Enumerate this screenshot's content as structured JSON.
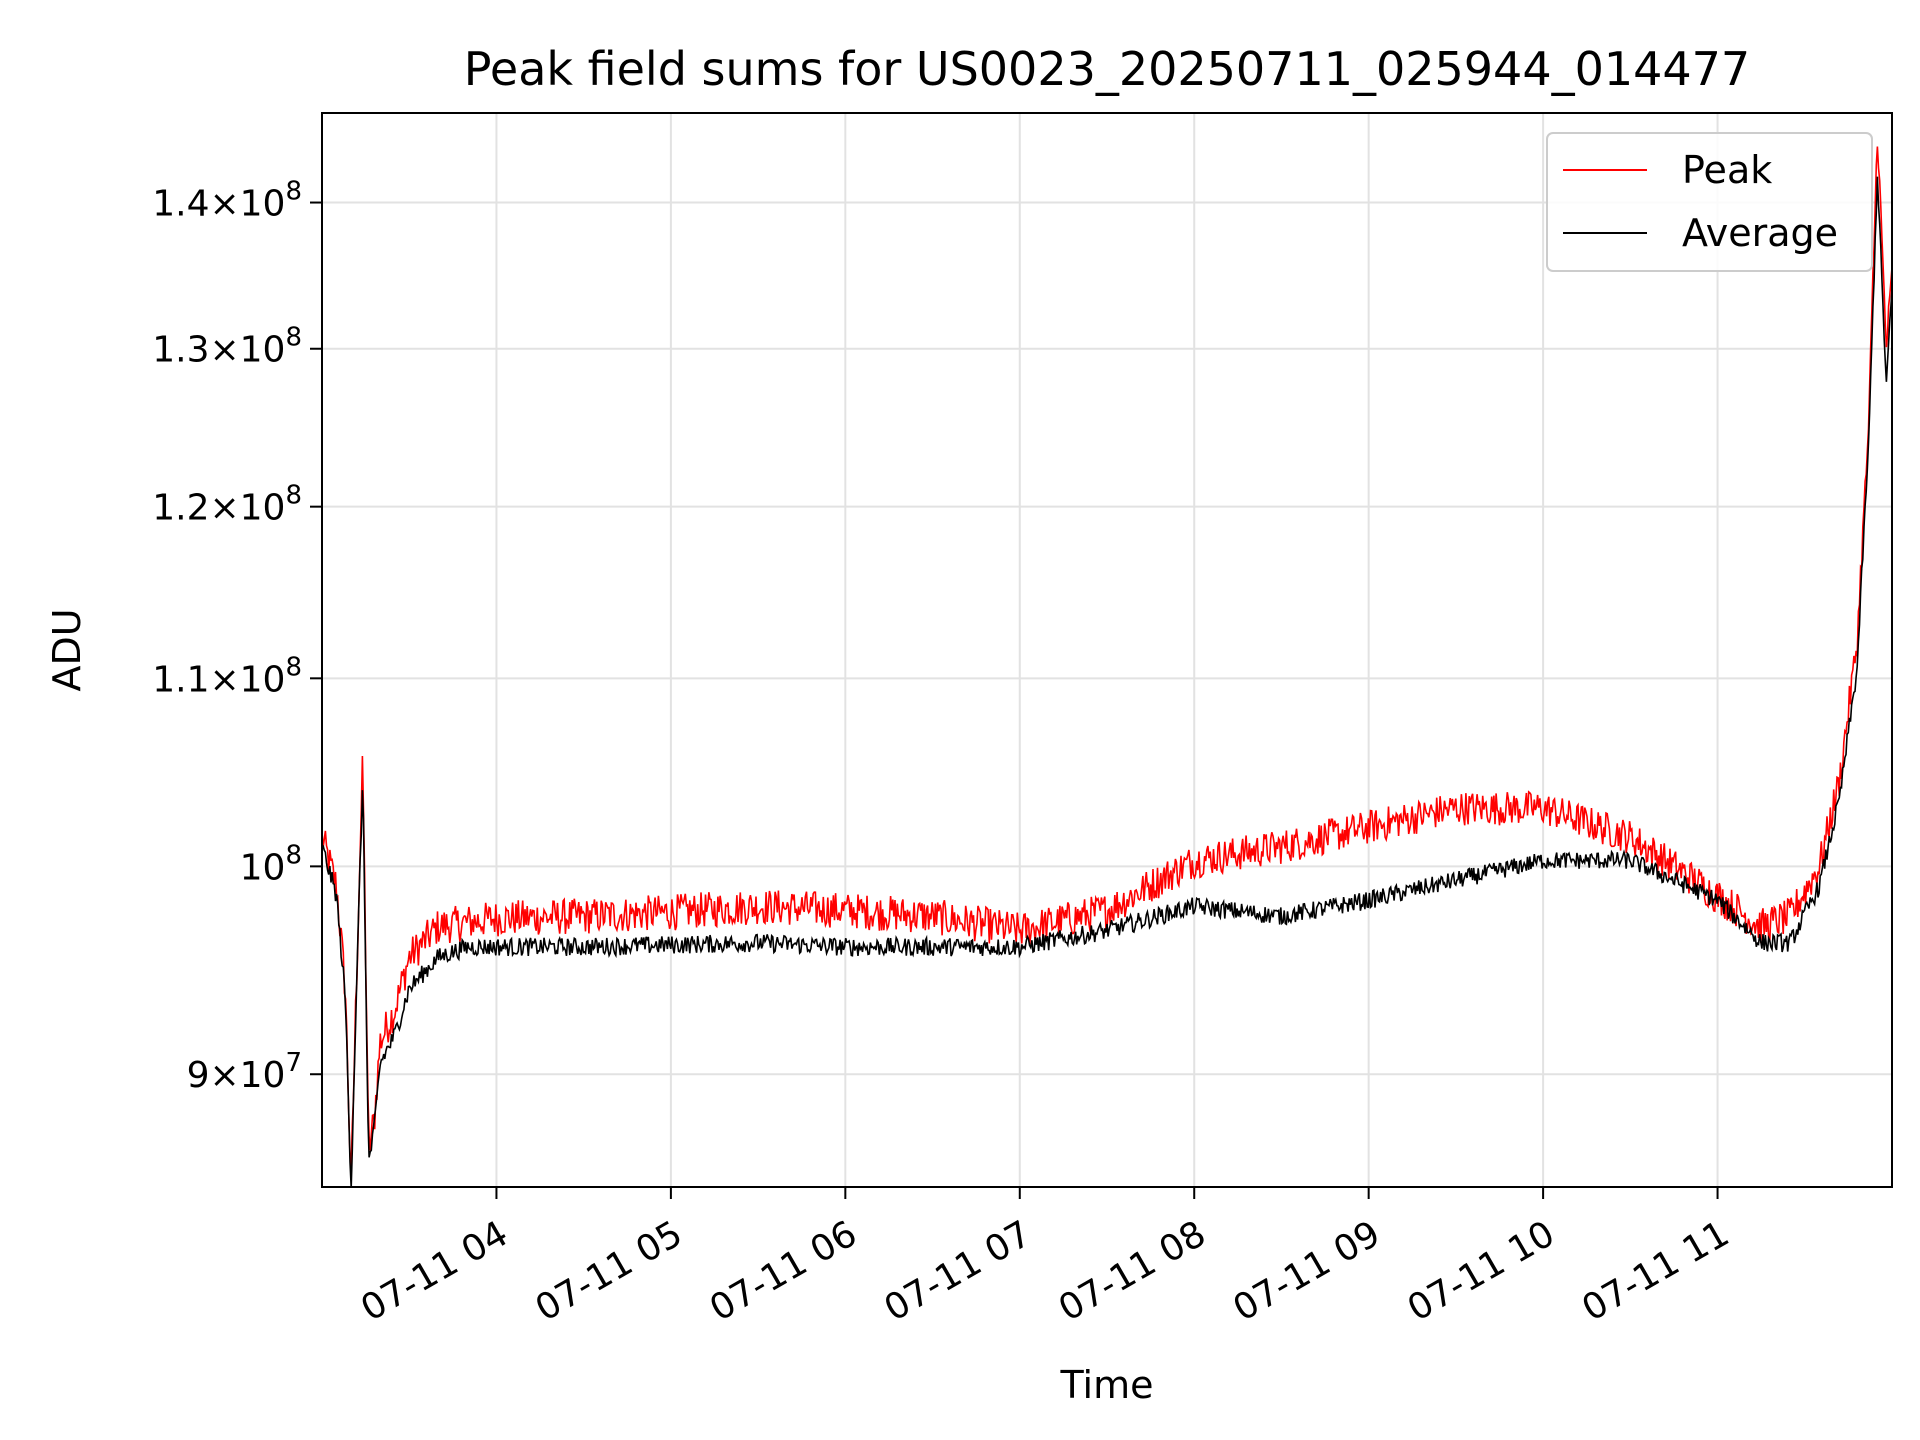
{
  "chart_data": {
    "type": "line",
    "title": "Peak field sums for US0023_20250711_025944_014477",
    "xlabel": "Time",
    "ylabel": "ADU",
    "yscale": "log",
    "grid": true,
    "legend_position": "top-right",
    "xlim": [
      "2025-07-11 03:00",
      "2025-07-11 12:00"
    ],
    "ylim": [
      85000000,
      146500000
    ],
    "x_ticks": [
      {
        "value": "2025-07-11 04:00",
        "label": "07-11 04"
      },
      {
        "value": "2025-07-11 05:00",
        "label": "07-11 05"
      },
      {
        "value": "2025-07-11 06:00",
        "label": "07-11 06"
      },
      {
        "value": "2025-07-11 07:00",
        "label": "07-11 07"
      },
      {
        "value": "2025-07-11 08:00",
        "label": "07-11 08"
      },
      {
        "value": "2025-07-11 09:00",
        "label": "07-11 09"
      },
      {
        "value": "2025-07-11 10:00",
        "label": "07-11 10"
      },
      {
        "value": "2025-07-11 11:00",
        "label": "07-11 11"
      }
    ],
    "y_ticks": [
      {
        "value": 90000000,
        "mant": "9",
        "exp": "7"
      },
      {
        "value": 100000000,
        "mant": "",
        "exp": "8"
      },
      {
        "value": 110000000,
        "mant": "1.1",
        "exp": "8"
      },
      {
        "value": 120000000,
        "mant": "1.2",
        "exp": "8"
      },
      {
        "value": 130000000,
        "mant": "1.3",
        "exp": "8"
      },
      {
        "value": 140000000,
        "mant": "1.4",
        "exp": "8"
      }
    ],
    "series": [
      {
        "name": "Peak",
        "color": "#ff0000",
        "noise": 900000,
        "x": [
          "2025-07-11 03:00",
          "2025-07-11 03:05",
          "2025-07-11 03:08",
          "2025-07-11 03:10",
          "2025-07-11 03:12",
          "2025-07-11 03:14",
          "2025-07-11 03:16",
          "2025-07-11 03:18",
          "2025-07-11 03:20",
          "2025-07-11 03:25",
          "2025-07-11 03:30",
          "2025-07-11 03:40",
          "2025-07-11 03:50",
          "2025-07-11 04:00",
          "2025-07-11 04:30",
          "2025-07-11 05:00",
          "2025-07-11 05:30",
          "2025-07-11 06:00",
          "2025-07-11 06:30",
          "2025-07-11 07:00",
          "2025-07-11 07:30",
          "2025-07-11 08:00",
          "2025-07-11 08:30",
          "2025-07-11 09:00",
          "2025-07-11 09:30",
          "2025-07-11 10:00",
          "2025-07-11 10:30",
          "2025-07-11 11:00",
          "2025-07-11 11:15",
          "2025-07-11 11:25",
          "2025-07-11 11:35",
          "2025-07-11 11:42",
          "2025-07-11 11:48",
          "2025-07-11 11:52",
          "2025-07-11 11:55",
          "2025-07-11 11:58",
          "2025-07-11 12:00"
        ],
        "y": [
          101500000,
          99000000,
          94000000,
          85000000,
          95000000,
          105500000,
          86500000,
          88000000,
          91500000,
          93000000,
          95500000,
          97000000,
          97200000,
          97400000,
          97500000,
          97700000,
          98000000,
          97800000,
          97500000,
          96800000,
          97800000,
          100300000,
          101000000,
          102000000,
          103000000,
          103000000,
          101500000,
          98500000,
          97000000,
          97500000,
          100000000,
          104500000,
          112000000,
          125000000,
          145000000,
          130000000,
          135000000
        ]
      },
      {
        "name": "Average",
        "color": "#000000",
        "noise": 450000,
        "x": [
          "2025-07-11 03:00",
          "2025-07-11 03:05",
          "2025-07-11 03:08",
          "2025-07-11 03:10",
          "2025-07-11 03:12",
          "2025-07-11 03:14",
          "2025-07-11 03:16",
          "2025-07-11 03:18",
          "2025-07-11 03:20",
          "2025-07-11 03:25",
          "2025-07-11 03:30",
          "2025-07-11 03:40",
          "2025-07-11 03:50",
          "2025-07-11 04:00",
          "2025-07-11 04:30",
          "2025-07-11 05:00",
          "2025-07-11 05:30",
          "2025-07-11 06:00",
          "2025-07-11 06:30",
          "2025-07-11 07:00",
          "2025-07-11 07:30",
          "2025-07-11 08:00",
          "2025-07-11 08:30",
          "2025-07-11 09:00",
          "2025-07-11 09:30",
          "2025-07-11 10:00",
          "2025-07-11 10:30",
          "2025-07-11 11:00",
          "2025-07-11 11:15",
          "2025-07-11 11:25",
          "2025-07-11 11:35",
          "2025-07-11 11:42",
          "2025-07-11 11:48",
          "2025-07-11 11:52",
          "2025-07-11 11:55",
          "2025-07-11 11:58",
          "2025-07-11 12:00"
        ],
        "y": [
          101000000,
          98500000,
          93500000,
          85000000,
          94500000,
          104500000,
          86000000,
          87500000,
          90500000,
          91800000,
          94000000,
          95500000,
          96000000,
          96000000,
          96000000,
          96100000,
          96200000,
          96000000,
          96000000,
          96000000,
          96800000,
          98000000,
          97500000,
          98300000,
          99300000,
          100300000,
          100300000,
          98300000,
          96200000,
          96200000,
          99000000,
          103500000,
          110500000,
          124000000,
          142000000,
          127500000,
          134000000
        ]
      }
    ]
  }
}
